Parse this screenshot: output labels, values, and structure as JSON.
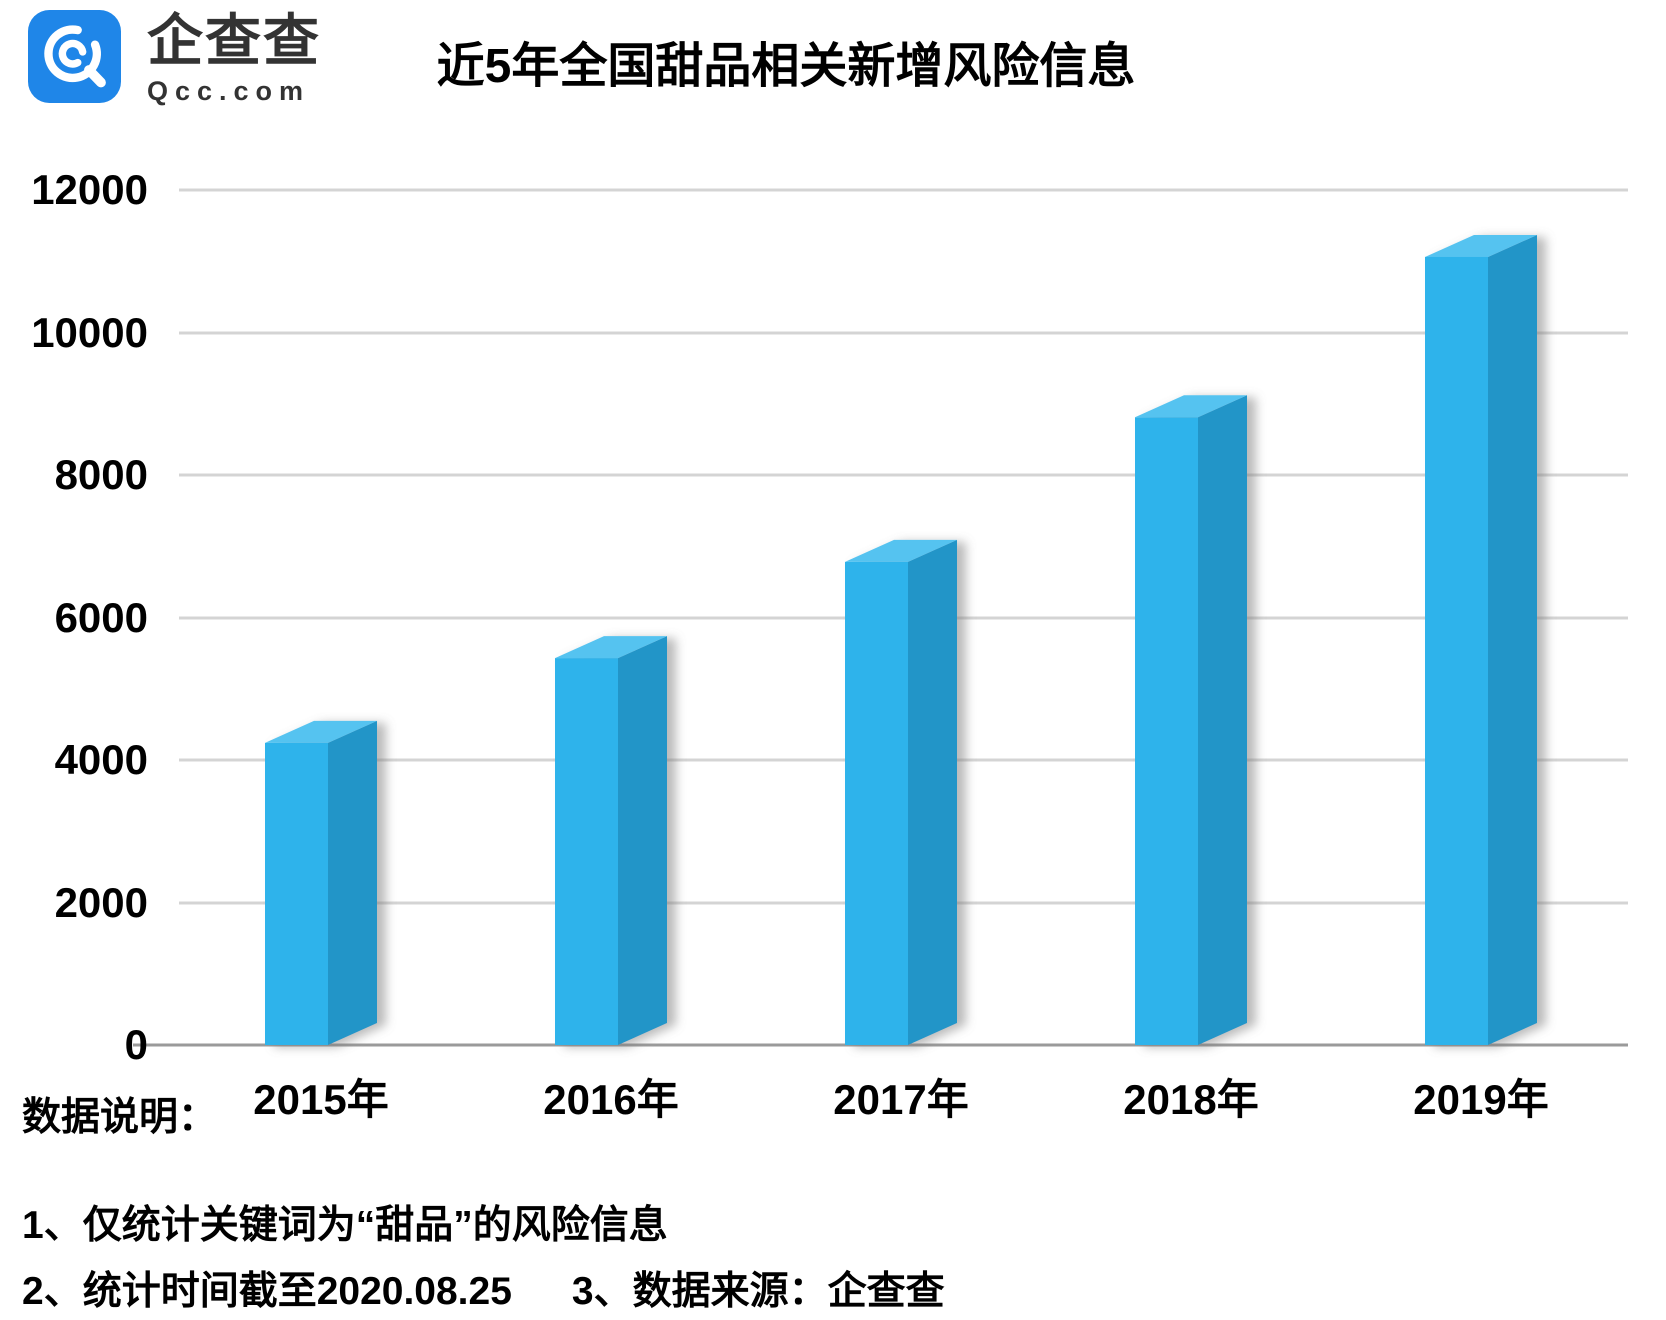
{
  "brand": {
    "name": "企查查",
    "domain": "Qcc.com",
    "logo_bg_color": "#1F86E8",
    "logo_icon": "qcc-magnifier-icon"
  },
  "chart_data": {
    "type": "bar",
    "style": "3d-column",
    "title": "近5年全国甜品相关新增风险信息",
    "categories": [
      "2015年",
      "2016年",
      "2017年",
      "2018年",
      "2019年"
    ],
    "values": [
      4240,
      5430,
      6780,
      8810,
      11060
    ],
    "xlabel": "",
    "ylabel": "",
    "ylim": [
      0,
      12000
    ],
    "yticks": [
      0,
      2000,
      4000,
      6000,
      8000,
      10000,
      12000
    ],
    "grid": true,
    "legend": false,
    "colors": {
      "bar_front": "#2FB3EB",
      "bar_top": "#55C3F0",
      "bar_side": "#2395C8",
      "gridline": "#D4D4D4",
      "axis_line": "#9A9A9A",
      "label_text": "#000000"
    }
  },
  "footer": {
    "heading": "数据说明：",
    "note1": "1、仅统计关键词为“甜品”的风险信息",
    "note2": "2、统计时间截至2020.08.25",
    "note3": "3、数据来源：企查查"
  }
}
